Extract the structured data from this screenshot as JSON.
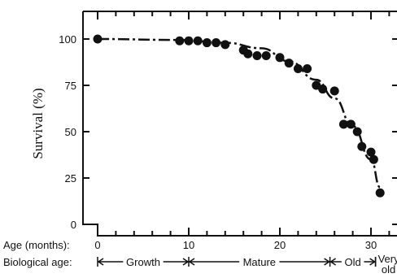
{
  "chart_data": {
    "type": "scatter",
    "xlabel": "Age (months):",
    "ylabel": "Survival (%)",
    "xlim": [
      0,
      34
    ],
    "ylim": [
      0,
      100
    ],
    "x_ticks": [
      "0",
      "10",
      "20",
      "30"
    ],
    "y_ticks": [
      "0",
      "25",
      "50",
      "75",
      "100"
    ],
    "points": [
      {
        "x": 0,
        "y": 100
      },
      {
        "x": 9,
        "y": 99
      },
      {
        "x": 10,
        "y": 99
      },
      {
        "x": 11,
        "y": 99
      },
      {
        "x": 12,
        "y": 98
      },
      {
        "x": 13,
        "y": 98
      },
      {
        "x": 14,
        "y": 97
      },
      {
        "x": 16,
        "y": 94
      },
      {
        "x": 16.5,
        "y": 92
      },
      {
        "x": 17.5,
        "y": 91
      },
      {
        "x": 18.5,
        "y": 91
      },
      {
        "x": 20,
        "y": 90
      },
      {
        "x": 21,
        "y": 87
      },
      {
        "x": 22,
        "y": 84
      },
      {
        "x": 23,
        "y": 84
      },
      {
        "x": 24,
        "y": 75
      },
      {
        "x": 24.7,
        "y": 73
      },
      {
        "x": 26,
        "y": 72
      },
      {
        "x": 27,
        "y": 54
      },
      {
        "x": 27.8,
        "y": 54
      },
      {
        "x": 28.5,
        "y": 50
      },
      {
        "x": 29,
        "y": 42
      },
      {
        "x": 30,
        "y": 39
      },
      {
        "x": 30.3,
        "y": 35
      },
      {
        "x": 31,
        "y": 17
      }
    ],
    "curve": [
      {
        "x": 0,
        "y": 100
      },
      {
        "x": 9,
        "y": 99.5
      },
      {
        "x": 14,
        "y": 98
      },
      {
        "x": 18,
        "y": 95
      },
      {
        "x": 21,
        "y": 88
      },
      {
        "x": 24,
        "y": 78
      },
      {
        "x": 26,
        "y": 68
      },
      {
        "x": 28,
        "y": 53
      },
      {
        "x": 30,
        "y": 35
      },
      {
        "x": 31,
        "y": 20
      }
    ],
    "biological_age": {
      "label": "Biological age:",
      "stages": [
        {
          "name": "Growth",
          "start": 0,
          "end": 10
        },
        {
          "name": "Mature",
          "start": 10,
          "end": 25.5
        },
        {
          "name": "Old",
          "start": 25.5,
          "end": 30.5
        },
        {
          "name": "Very old",
          "start": 30.5,
          "end": 34
        }
      ]
    }
  }
}
